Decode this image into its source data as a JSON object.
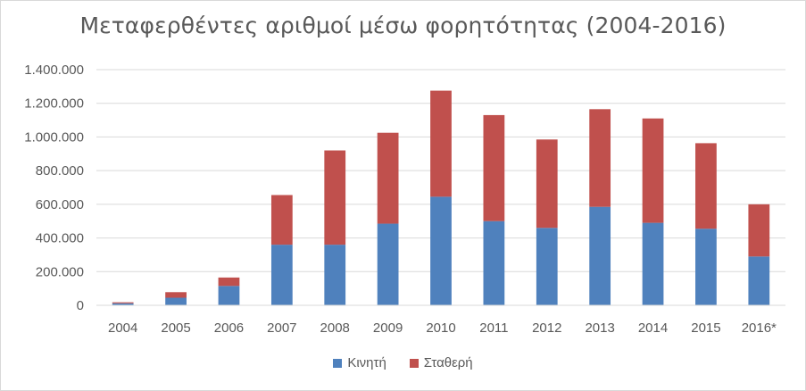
{
  "chart_data": {
    "type": "bar",
    "stacked": true,
    "title": "Μεταφερθέντες αριθμοί μέσω φορητότητας (2004-2016)",
    "categories": [
      "2004",
      "2005",
      "2006",
      "2007",
      "2008",
      "2009",
      "2010",
      "2011",
      "2012",
      "2013",
      "2014",
      "2015",
      "2016*"
    ],
    "series": [
      {
        "name": "Κινητή",
        "color": "#4f81bd",
        "values": [
          12000,
          45000,
          115000,
          360000,
          360000,
          485000,
          645000,
          500000,
          460000,
          585000,
          490000,
          455000,
          290000
        ]
      },
      {
        "name": "Σταθερή",
        "color": "#c0504d",
        "values": [
          6000,
          33000,
          50000,
          295000,
          560000,
          540000,
          630000,
          630000,
          525000,
          580000,
          620000,
          508000,
          310000
        ]
      }
    ],
    "yticks": [
      "0",
      "200.000",
      "400.000",
      "600.000",
      "800.000",
      "1.000.000",
      "1.200.000",
      "1.400.000"
    ],
    "ylim": [
      0,
      1400000
    ],
    "grid": true,
    "legend_position": "bottom"
  }
}
